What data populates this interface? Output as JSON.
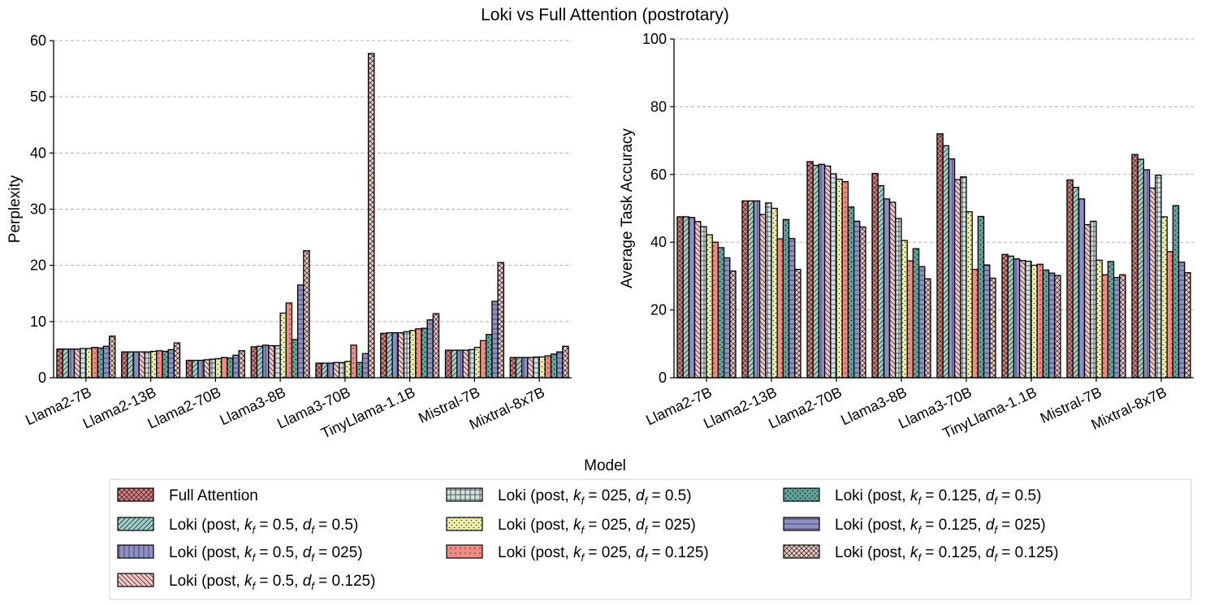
{
  "title": "Loki vs Full Attention (postrotary)",
  "xlabel": "Model",
  "colors": {
    "Full Attention": "#e07b7b",
    "L1": "#9fcfcb",
    "L2": "#8e8ec8",
    "L3": "#f7c4c1",
    "L4": "#cfe3e0",
    "L5": "#f0f0a8",
    "L6": "#ef8b85",
    "L7": "#5fa59b",
    "L8": "#8f8fc9",
    "L9": "#f3c9c6"
  },
  "legend": [
    {
      "id": "Full Attention",
      "text": "Full Attention",
      "pattern": "xhatch"
    },
    {
      "id": "L1",
      "text": "Loki (post, k_f = 0.5, d_f = 0.5)",
      "pre": "Loki (post, ",
      "k": "0.5",
      "d": "0.5",
      "pattern": "diag"
    },
    {
      "id": "L2",
      "text": "Loki (post, k_f = 0.5, d_f = 0.25)",
      "pre": "Loki (post, ",
      "k": "0.5",
      "d": "025",
      "pattern": "vert"
    },
    {
      "id": "L3",
      "text": "Loki (post, k_f = 0.5, d_f = 0.125)",
      "pre": "Loki (post, ",
      "k": "0.5",
      "d": "0.125",
      "pattern": "bdiag"
    },
    {
      "id": "L4",
      "text": "Loki (post, k_f = 0.25, d_f = 0.5)",
      "pre": "Loki (post, ",
      "k": "025",
      "d": "0.5",
      "pattern": "grid"
    },
    {
      "id": "L5",
      "text": "Loki (post, k_f = 0.25, d_f = 0.25)",
      "pre": "Loki (post, ",
      "k": "025",
      "d": "025",
      "pattern": "dots"
    },
    {
      "id": "L6",
      "text": "Loki (post, k_f = 0.25, d_f = 0.125)",
      "pre": "Loki (post, ",
      "k": "025",
      "d": "0.125",
      "pattern": "dots2"
    },
    {
      "id": "L7",
      "text": "Loki (post, k_f = 0.125, d_f = 0.5)",
      "pre": "Loki (post, ",
      "k": "0.125",
      "d": "0.5",
      "pattern": "dots3"
    },
    {
      "id": "L8",
      "text": "Loki (post, k_f = 0.125, d_f = 0.25)",
      "pre": "Loki (post, ",
      "k": "0.125",
      "d": "025",
      "pattern": "horiz"
    },
    {
      "id": "L9",
      "text": "Loki (post, k_f = 0.125, d_f = 0.125)",
      "pre": "Loki (post, ",
      "k": "0.125",
      "d": "0.125",
      "pattern": "xhatch"
    }
  ],
  "chart_data": [
    {
      "type": "bar",
      "ylabel": "Perplexity",
      "xlabel": "Model",
      "ylim": [
        0,
        60
      ],
      "yticks": [
        0,
        10,
        20,
        30,
        40,
        50,
        60
      ],
      "grid": true,
      "categories": [
        "Llama2-7B",
        "Llama2-13B",
        "Llama2-70B",
        "Llama3-8B",
        "Llama3-70B",
        "TinyLlama-1.1B",
        "Mistral-7B",
        "Mixtral-8x7B"
      ],
      "series": [
        {
          "name": "Full Attention",
          "values": [
            5.1,
            4.6,
            3.1,
            5.5,
            2.6,
            7.9,
            4.9,
            3.6
          ]
        },
        {
          "name": "Loki (post, k_f = 0.5, d_f = 0.5)",
          "values": [
            5.1,
            4.6,
            3.1,
            5.6,
            2.6,
            8.0,
            4.9,
            3.6
          ]
        },
        {
          "name": "Loki (post, k_f = 0.5, d_f = 0.25)",
          "values": [
            5.1,
            4.6,
            3.1,
            5.8,
            2.6,
            8.0,
            4.9,
            3.6
          ]
        },
        {
          "name": "Loki (post, k_f = 0.5, d_f = 0.125)",
          "values": [
            5.1,
            4.6,
            3.2,
            5.7,
            2.7,
            8.0,
            4.9,
            3.6
          ]
        },
        {
          "name": "Loki (post, k_f = 0.25, d_f = 0.5)",
          "values": [
            5.2,
            4.6,
            3.3,
            5.7,
            2.7,
            8.2,
            5.0,
            3.7
          ]
        },
        {
          "name": "Loki (post, k_f = 0.25, d_f = 0.25)",
          "values": [
            5.2,
            4.7,
            3.4,
            11.5,
            2.9,
            8.4,
            5.4,
            3.7
          ]
        },
        {
          "name": "Loki (post, k_f = 0.25, d_f = 0.125)",
          "values": [
            5.4,
            4.8,
            3.6,
            13.3,
            5.8,
            8.7,
            6.6,
            3.9
          ]
        },
        {
          "name": "Loki (post, k_f = 0.125, d_f = 0.5)",
          "values": [
            5.3,
            4.7,
            3.5,
            6.8,
            2.7,
            8.8,
            7.7,
            4.2
          ]
        },
        {
          "name": "Loki (post, k_f = 0.125, d_f = 0.25)",
          "values": [
            5.6,
            5.0,
            4.0,
            16.5,
            4.3,
            10.3,
            13.6,
            4.6
          ]
        },
        {
          "name": "Loki (post, k_f = 0.125, d_f = 0.125)",
          "values": [
            7.4,
            6.2,
            4.8,
            22.6,
            57.7,
            11.4,
            20.5,
            5.6
          ]
        }
      ]
    },
    {
      "type": "bar",
      "ylabel": "Average Task Accuracy",
      "xlabel": "Model",
      "ylim": [
        0,
        100
      ],
      "yticks": [
        0,
        20,
        40,
        60,
        80,
        100
      ],
      "grid": true,
      "categories": [
        "Llama2-7B",
        "Llama2-13B",
        "Llama2-70B",
        "Llama3-8B",
        "Llama3-70B",
        "TinyLlama-1.1B",
        "Mistral-7B",
        "Mixtral-8x7B"
      ],
      "series": [
        {
          "name": "Full Attention",
          "values": [
            47.5,
            52.2,
            63.8,
            60.3,
            72.0,
            36.4,
            58.4,
            65.9
          ]
        },
        {
          "name": "Loki (post, k_f = 0.5, d_f = 0.5)",
          "values": [
            47.5,
            52.2,
            62.7,
            56.7,
            68.5,
            35.9,
            56.2,
            64.5
          ]
        },
        {
          "name": "Loki (post, k_f = 0.5, d_f = 0.25)",
          "values": [
            47.3,
            52.2,
            63.0,
            52.8,
            64.6,
            35.1,
            52.8,
            61.4
          ]
        },
        {
          "name": "Loki (post, k_f = 0.5, d_f = 0.125)",
          "values": [
            46.1,
            48.2,
            62.5,
            51.8,
            58.5,
            34.6,
            45.2,
            56.0
          ]
        },
        {
          "name": "Loki (post, k_f = 0.25, d_f = 0.5)",
          "values": [
            44.6,
            51.6,
            60.2,
            47.0,
            59.3,
            34.4,
            46.2,
            59.8
          ]
        },
        {
          "name": "Loki (post, k_f = 0.25, d_f = 0.25)",
          "values": [
            42.2,
            50.0,
            58.6,
            40.5,
            49.0,
            33.2,
            34.7,
            47.5
          ]
        },
        {
          "name": "Loki (post, k_f = 0.25, d_f = 0.125)",
          "values": [
            40.0,
            41.0,
            57.9,
            34.5,
            32.0,
            33.5,
            30.4,
            37.2
          ]
        },
        {
          "name": "Loki (post, k_f = 0.125, d_f = 0.5)",
          "values": [
            38.4,
            46.7,
            50.4,
            38.1,
            47.6,
            31.8,
            34.3,
            50.8
          ]
        },
        {
          "name": "Loki (post, k_f = 0.125, d_f = 0.25)",
          "values": [
            35.4,
            41.1,
            46.2,
            32.8,
            33.3,
            30.9,
            29.6,
            34.1
          ]
        },
        {
          "name": "Loki (post, k_f = 0.125, d_f = 0.125)",
          "values": [
            31.5,
            32.0,
            44.5,
            29.2,
            29.4,
            30.2,
            30.4,
            31.0
          ]
        }
      ]
    }
  ]
}
